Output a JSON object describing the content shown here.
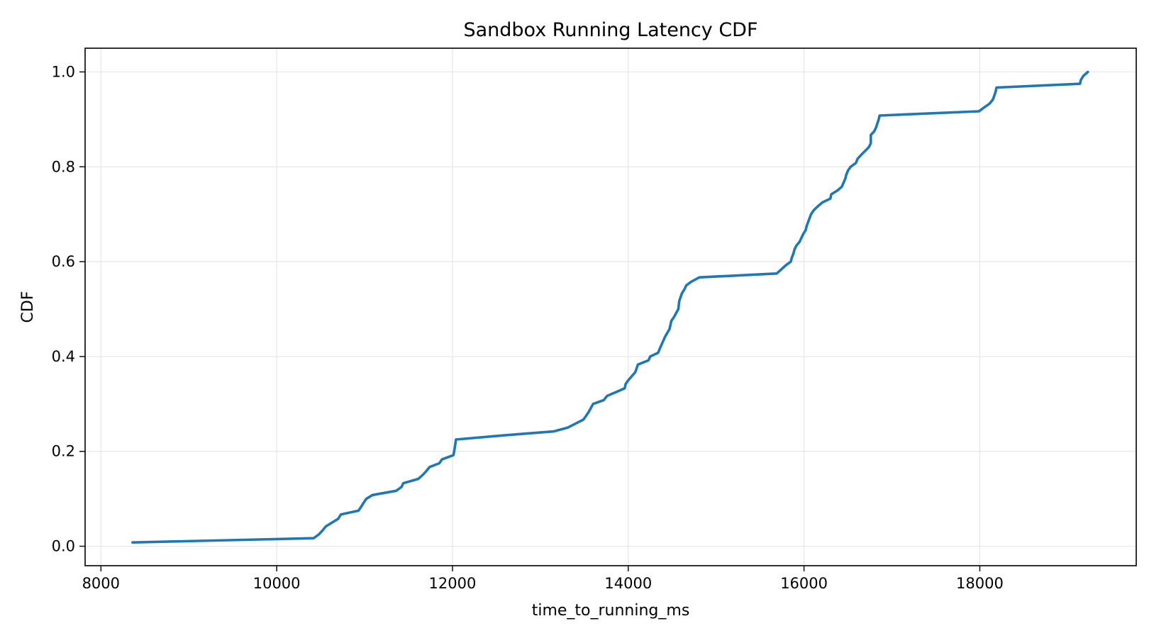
{
  "chart_data": {
    "type": "line",
    "title": "Sandbox Running Latency CDF",
    "xlabel": "time_to_running_ms",
    "ylabel": "CDF",
    "xlim": [
      7820,
      19780
    ],
    "ylim": [
      -0.041,
      1.05
    ],
    "grid": true,
    "color": "#1f77b4",
    "xticks": [
      8000,
      10000,
      12000,
      14000,
      16000,
      18000
    ],
    "xtick_labels": [
      "8000",
      "10000",
      "12000",
      "14000",
      "16000",
      "18000"
    ],
    "yticks": [
      0.0,
      0.2,
      0.4,
      0.6,
      0.8,
      1.0
    ],
    "ytick_labels": [
      "0.0",
      "0.2",
      "0.4",
      "0.6",
      "0.8",
      "1.0"
    ],
    "series": [
      {
        "x": [
          8360,
          10420,
          10480,
          10520,
          10560,
          10700,
          10730,
          10930,
          10960,
          10990,
          11020,
          11090,
          11360,
          11420,
          11440,
          11610,
          11660,
          11700,
          11740,
          11850,
          11880,
          12010,
          12020,
          12040,
          12530,
          13150,
          13310,
          13490,
          13520,
          13550,
          13600,
          13720,
          13760,
          13960,
          13970,
          14000,
          14080,
          14110,
          14230,
          14250,
          14340,
          14360,
          14420,
          14470,
          14490,
          14520,
          14570,
          14580,
          14610,
          14640,
          14660,
          14720,
          14810,
          14820,
          15690,
          15790,
          15850,
          15860,
          15880,
          15890,
          15910,
          15950,
          15990,
          16020,
          16030,
          16080,
          16110,
          16130,
          16160,
          16210,
          16300,
          16310,
          16380,
          16430,
          16470,
          16480,
          16500,
          16530,
          16590,
          16610,
          16650,
          16740,
          16760,
          16760,
          16800,
          16820,
          16850,
          16860,
          17990,
          18050,
          18110,
          18150,
          18180,
          18190,
          19140,
          19150,
          19180,
          19230
        ],
        "y": [
          0.008,
          0.017,
          0.025,
          0.033,
          0.042,
          0.058,
          0.067,
          0.075,
          0.083,
          0.092,
          0.1,
          0.108,
          0.117,
          0.125,
          0.133,
          0.142,
          0.15,
          0.158,
          0.167,
          0.175,
          0.183,
          0.192,
          0.2,
          0.225,
          0.233,
          0.242,
          0.25,
          0.267,
          0.275,
          0.283,
          0.3,
          0.308,
          0.317,
          0.333,
          0.342,
          0.35,
          0.367,
          0.383,
          0.392,
          0.4,
          0.408,
          0.417,
          0.442,
          0.458,
          0.475,
          0.483,
          0.5,
          0.517,
          0.533,
          0.542,
          0.55,
          0.558,
          0.567,
          0.567,
          0.575,
          0.592,
          0.6,
          0.608,
          0.617,
          0.625,
          0.633,
          0.642,
          0.658,
          0.667,
          0.675,
          0.7,
          0.708,
          0.712,
          0.717,
          0.725,
          0.733,
          0.742,
          0.75,
          0.758,
          0.775,
          0.783,
          0.792,
          0.8,
          0.808,
          0.817,
          0.825,
          0.842,
          0.85,
          0.867,
          0.875,
          0.883,
          0.9,
          0.908,
          0.917,
          0.925,
          0.933,
          0.942,
          0.958,
          0.967,
          0.975,
          0.983,
          0.992,
          1.0
        ]
      }
    ]
  }
}
